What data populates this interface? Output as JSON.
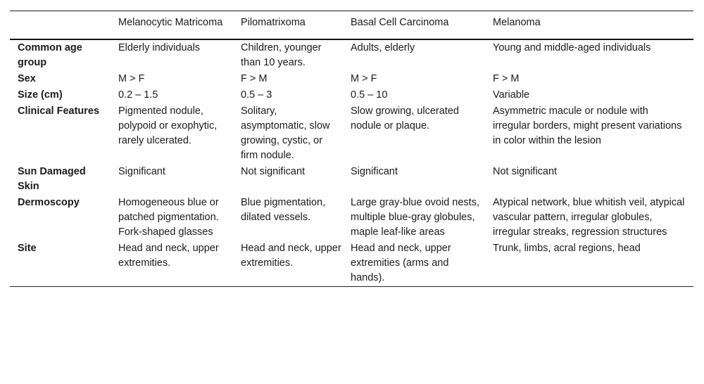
{
  "table": {
    "headers": [
      "",
      "Melanocytic Matricoma",
      "Pilomatrixoma",
      "Basal Cell Carcinoma",
      "Melanoma"
    ],
    "rows": [
      {
        "label": "Common age group",
        "cells": [
          "Elderly individuals",
          "Children, younger than 10 years.",
          "Adults, elderly",
          "Young and middle-aged individuals"
        ]
      },
      {
        "label": "Sex",
        "cells": [
          "M > F",
          "F > M",
          "M > F",
          "F > M"
        ]
      },
      {
        "label": "Size (cm)",
        "cells": [
          "0.2 – 1.5",
          "0.5 – 3",
          "0.5 – 10",
          "Variable"
        ]
      },
      {
        "label": "Clinical Features",
        "cells": [
          "Pigmented nodule, polypoid or exophytic, rarely ulcerated.",
          "Solitary, asymptomatic, slow growing, cystic, or firm nodule.",
          "Slow growing, ulcerated nodule or plaque.",
          "Asymmetric macule or nodule with irregular borders, might present variations in color within the lesion"
        ]
      },
      {
        "label": "Sun Damaged Skin",
        "cells": [
          "Significant",
          "Not significant",
          "Significant",
          "Not significant"
        ]
      },
      {
        "label": "Dermoscopy",
        "cells": [
          "Homogeneous blue or patched pigmentation. Fork-shaped glasses",
          "Blue pigmentation, dilated vessels.",
          "Large gray-blue ovoid nests, multiple blue-gray globules, maple leaf-like areas",
          "Atypical network, blue whitish veil, atypical vascular pattern, irregular globules, irregular streaks, regression structures"
        ]
      },
      {
        "label": "Site",
        "cells": [
          "Head and neck, upper extremities.",
          "Head and neck, upper extremities.",
          "Head and neck, upper extremities (arms and hands).",
          "Trunk, limbs, acral regions, head"
        ]
      }
    ]
  }
}
